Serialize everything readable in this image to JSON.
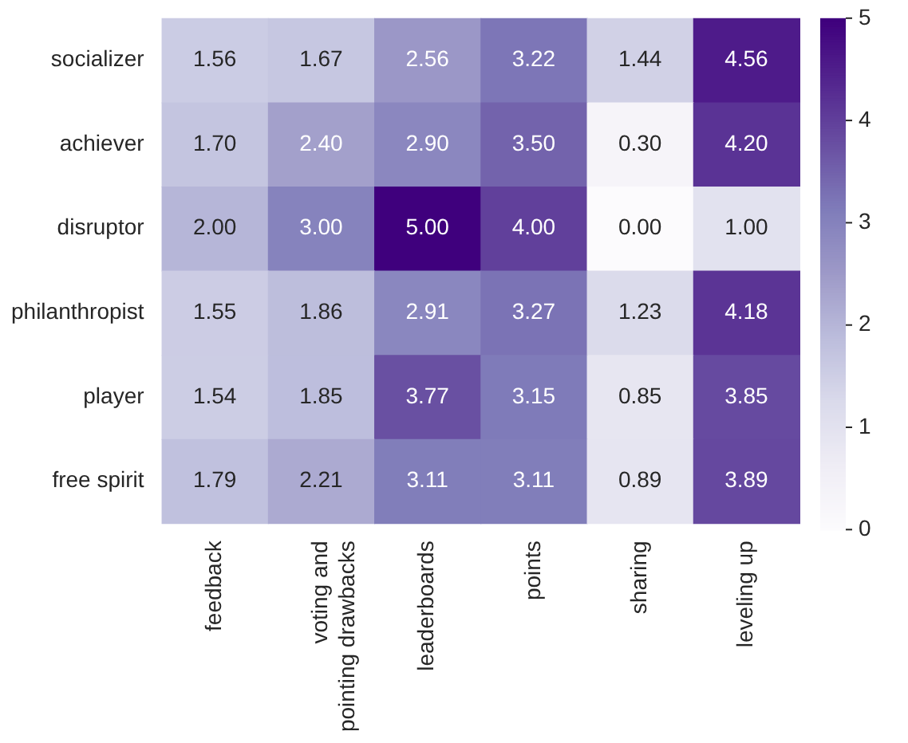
{
  "chart_data": {
    "type": "heatmap",
    "categories": [
      "feedback",
      "voting and\npointing drawbacks",
      "leaderboards",
      "points",
      "sharing",
      "leveling up"
    ],
    "y_categories": [
      "socializer",
      "achiever",
      "disruptor",
      "philanthropist",
      "player",
      "free spirit"
    ],
    "cells": [
      [
        1.56,
        1.67,
        2.56,
        3.22,
        1.44,
        4.56
      ],
      [
        1.7,
        2.4,
        2.9,
        3.5,
        0.3,
        4.2
      ],
      [
        2.0,
        3.0,
        5.0,
        4.0,
        0.0,
        1.0
      ],
      [
        1.55,
        1.86,
        2.91,
        3.27,
        1.23,
        4.18
      ],
      [
        1.54,
        1.85,
        3.77,
        3.15,
        0.85,
        3.85
      ],
      [
        1.79,
        2.21,
        3.11,
        3.11,
        0.89,
        3.89
      ]
    ],
    "cell_labels": [
      [
        "1.56",
        "1.67",
        "2.56",
        "3.22",
        "1.44",
        "4.56"
      ],
      [
        "1.70",
        "2.40",
        "2.90",
        "3.50",
        "0.30",
        "4.20"
      ],
      [
        "2.00",
        "3.00",
        "5.00",
        "4.00",
        "0.00",
        "1.00"
      ],
      [
        "1.55",
        "1.86",
        "2.91",
        "3.27",
        "1.23",
        "4.18"
      ],
      [
        "1.54",
        "1.85",
        "3.77",
        "3.15",
        "0.85",
        "3.85"
      ],
      [
        "1.79",
        "2.21",
        "3.11",
        "3.11",
        "0.89",
        "3.89"
      ]
    ],
    "clim": [
      0,
      5
    ],
    "cticks": [
      0,
      1,
      2,
      3,
      4,
      5
    ],
    "data_labels": true
  }
}
